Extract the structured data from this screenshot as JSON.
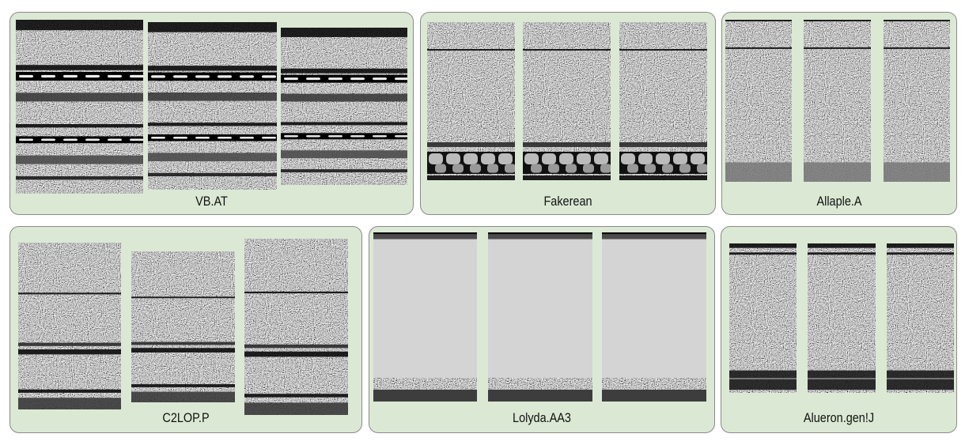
{
  "families": [
    {
      "label": "VB.AT"
    },
    {
      "label": "Fakerean"
    },
    {
      "label": "Allaple.A"
    },
    {
      "label": "C2LOP.P"
    },
    {
      "label": "Lolyda.AA3"
    },
    {
      "label": "Alueron.gen!J"
    }
  ],
  "colors": {
    "panel_bg": "#dbe9d4",
    "panel_border": "#8a8a8a",
    "lolyda_fill": "#d4d4d4"
  }
}
